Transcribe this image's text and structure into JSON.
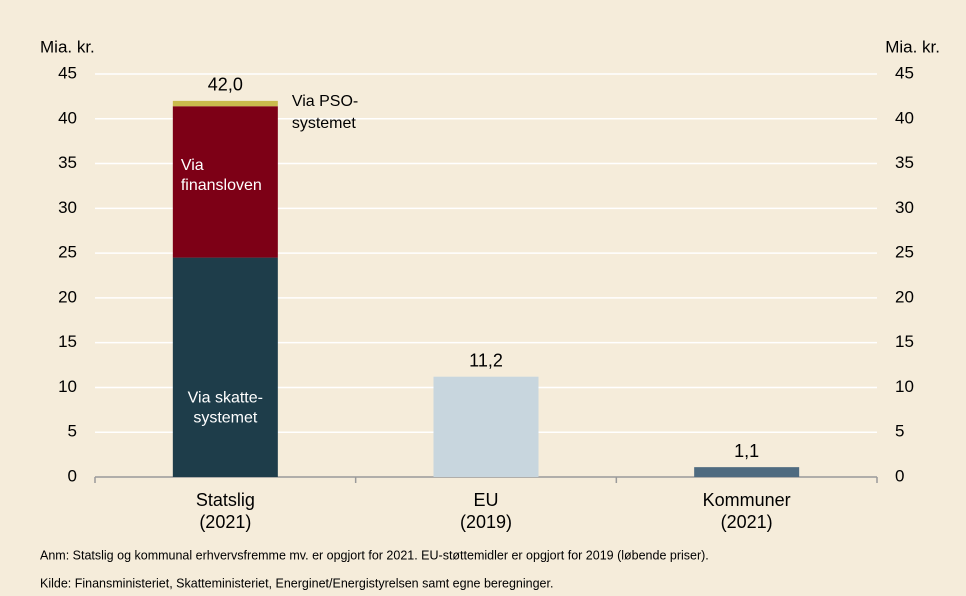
{
  "chart_data": {
    "type": "bar",
    "stacked": true,
    "ylabel": "Mia. kr.",
    "y2label": "Mia. kr.",
    "categories": [
      [
        "Statslig",
        "(2021)"
      ],
      [
        "EU",
        "(2019)"
      ],
      [
        "Kommuner",
        "(2021)"
      ]
    ],
    "series": [
      {
        "name": [
          "Via skatte-",
          "systemet"
        ],
        "color": "#1e3d4a",
        "values": [
          24.5,
          null,
          null
        ]
      },
      {
        "name": [
          "Via",
          "finansloven"
        ],
        "color": "#7d0016",
        "values": [
          16.9,
          null,
          null
        ]
      },
      {
        "name": [
          "Via PSO-",
          "systemet"
        ],
        "color": "#c9bb4c",
        "values": [
          0.6,
          null,
          null
        ]
      },
      {
        "color": "#c8d6de",
        "values": [
          null,
          11.2,
          null
        ]
      },
      {
        "color": "#4f6b80",
        "values": [
          null,
          null,
          1.1
        ]
      }
    ],
    "totals": {
      "values": [
        42.0,
        11.2,
        1.1
      ],
      "value_labels": [
        "42,0",
        "11,2",
        "1,1"
      ]
    },
    "ylim": [
      0,
      45
    ],
    "yticks": [
      0,
      5,
      10,
      15,
      20,
      25,
      30,
      35,
      40,
      45
    ],
    "y2lim": [
      0,
      45
    ],
    "y2ticks": [
      0,
      5,
      10,
      15,
      20,
      25,
      30,
      35,
      40,
      45
    ],
    "grid": true,
    "notes": [
      "Anm: Statslig og kommunal erhvervsfremme mv. er opgjort for 2021. EU-støttemidler er opgjort for 2019 (løbende priser).",
      "Kilde: Finansministeriet, Skatteministeriet, Energinet/Energistyrelsen samt egne beregninger."
    ]
  }
}
